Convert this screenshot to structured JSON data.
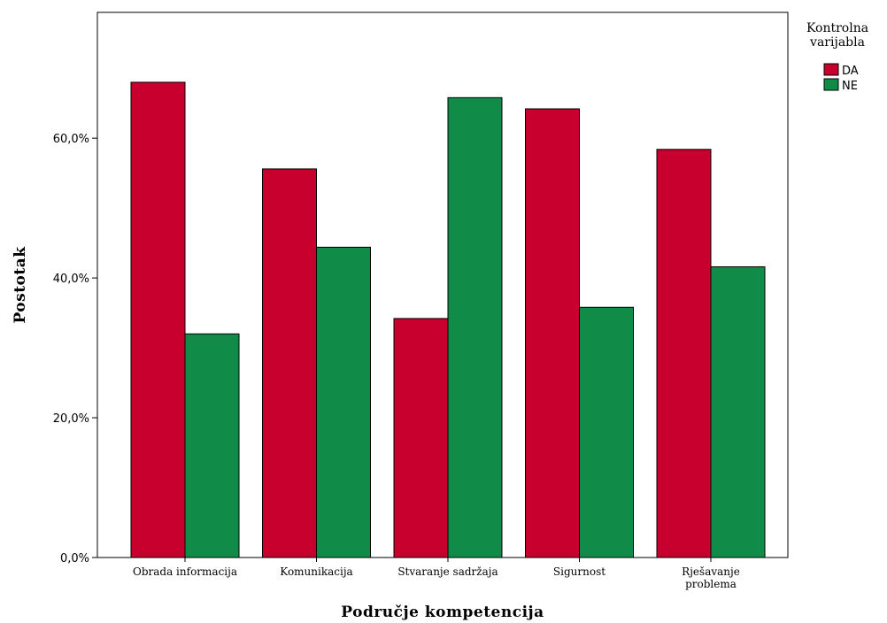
{
  "chart_data": {
    "type": "bar",
    "title": "",
    "xlabel": "Područje kompetencija",
    "ylabel": "Postotak",
    "categories": [
      [
        "Obrada informacija"
      ],
      [
        "Komunikacija"
      ],
      [
        "Stvaranje sadržaja"
      ],
      [
        "Sigurnost"
      ],
      [
        "Rješavanje",
        "problema"
      ]
    ],
    "series": [
      {
        "name": "DA",
        "color": "#c8002d",
        "values": [
          68.0,
          55.6,
          34.2,
          64.2,
          58.4
        ]
      },
      {
        "name": "NE",
        "color": "#108c48",
        "values": [
          32.0,
          44.4,
          65.8,
          35.8,
          41.6
        ]
      }
    ],
    "ylim": [
      0,
      78
    ],
    "yticks": [
      0,
      20,
      40,
      60
    ],
    "ytick_labels": [
      "0,0%",
      "20,0%",
      "40,0%",
      "60,0%"
    ],
    "grid": false,
    "legend": {
      "title_lines": [
        "Kontrolna",
        "varijabla"
      ],
      "placement": "right-top, outside plot"
    }
  }
}
